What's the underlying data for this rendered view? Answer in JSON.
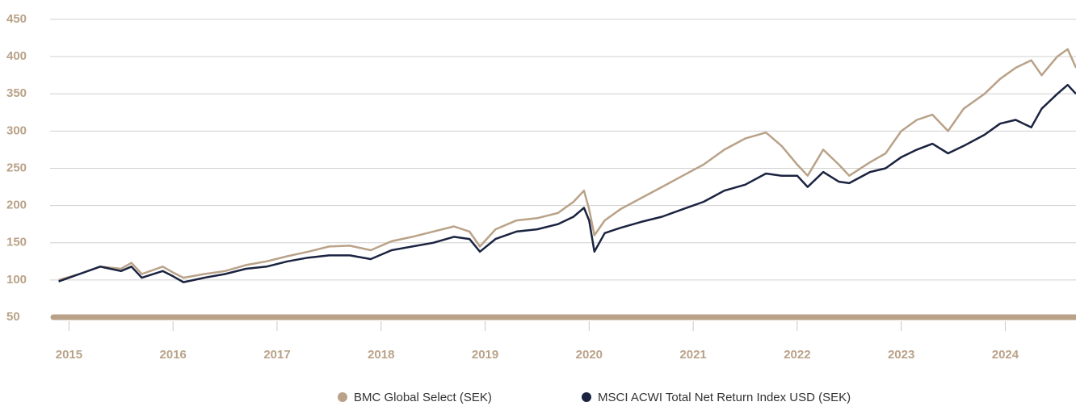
{
  "chart_data": {
    "type": "line",
    "series": [
      {
        "name": "BMC Global Select (SEK)",
        "color": "#b9a288",
        "x": [
          2014.9,
          2015.1,
          2015.3,
          2015.5,
          2015.6,
          2015.7,
          2015.9,
          2016.0,
          2016.1,
          2016.3,
          2016.5,
          2016.7,
          2016.9,
          2017.1,
          2017.3,
          2017.5,
          2017.7,
          2017.9,
          2018.1,
          2018.3,
          2018.5,
          2018.7,
          2018.85,
          2018.95,
          2019.1,
          2019.3,
          2019.5,
          2019.7,
          2019.85,
          2019.95,
          2020.0,
          2020.05,
          2020.15,
          2020.3,
          2020.5,
          2020.7,
          2020.9,
          2021.1,
          2021.3,
          2021.5,
          2021.7,
          2021.85,
          2022.0,
          2022.1,
          2022.25,
          2022.4,
          2022.5,
          2022.7,
          2022.85,
          2023.0,
          2023.15,
          2023.3,
          2023.45,
          2023.6,
          2023.8,
          2023.95,
          2024.1,
          2024.25,
          2024.35,
          2024.5,
          2024.6,
          2024.68
        ],
        "values": [
          100,
          108,
          118,
          115,
          123,
          108,
          118,
          110,
          103,
          108,
          112,
          120,
          125,
          132,
          138,
          145,
          146,
          140,
          152,
          158,
          165,
          172,
          165,
          145,
          168,
          180,
          183,
          190,
          205,
          220,
          195,
          160,
          180,
          195,
          210,
          225,
          240,
          255,
          275,
          290,
          298,
          280,
          255,
          240,
          275,
          255,
          240,
          258,
          270,
          300,
          315,
          322,
          300,
          330,
          350,
          370,
          385,
          395,
          375,
          400,
          410,
          385
        ]
      },
      {
        "name": "MSCI ACWI Total Net Return Index USD (SEK)",
        "color": "#1a2340",
        "x": [
          2014.9,
          2015.1,
          2015.3,
          2015.5,
          2015.6,
          2015.7,
          2015.9,
          2016.0,
          2016.1,
          2016.3,
          2016.5,
          2016.7,
          2016.9,
          2017.1,
          2017.3,
          2017.5,
          2017.7,
          2017.9,
          2018.1,
          2018.3,
          2018.5,
          2018.7,
          2018.85,
          2018.95,
          2019.1,
          2019.3,
          2019.5,
          2019.7,
          2019.85,
          2019.95,
          2020.0,
          2020.05,
          2020.15,
          2020.3,
          2020.5,
          2020.7,
          2020.9,
          2021.1,
          2021.3,
          2021.5,
          2021.7,
          2021.85,
          2022.0,
          2022.1,
          2022.25,
          2022.4,
          2022.5,
          2022.7,
          2022.85,
          2023.0,
          2023.15,
          2023.3,
          2023.45,
          2023.6,
          2023.8,
          2023.95,
          2024.1,
          2024.25,
          2024.35,
          2024.5,
          2024.6,
          2024.68
        ],
        "values": [
          98,
          108,
          118,
          112,
          118,
          103,
          112,
          105,
          97,
          103,
          108,
          115,
          118,
          125,
          130,
          133,
          133,
          128,
          140,
          145,
          150,
          158,
          155,
          138,
          155,
          165,
          168,
          175,
          185,
          197,
          180,
          138,
          163,
          170,
          178,
          185,
          195,
          205,
          220,
          228,
          243,
          240,
          240,
          225,
          245,
          232,
          230,
          245,
          250,
          265,
          275,
          283,
          270,
          280,
          295,
          310,
          315,
          305,
          330,
          350,
          362,
          350
        ]
      }
    ],
    "xlim": [
      2014.88,
      2024.68
    ],
    "xticks": [
      2015,
      2016,
      2017,
      2018,
      2019,
      2020,
      2021,
      2022,
      2023,
      2024
    ],
    "ylim": [
      50,
      450
    ],
    "yticks": [
      50,
      100,
      150,
      200,
      250,
      300,
      350,
      400,
      450
    ],
    "grid": true
  }
}
